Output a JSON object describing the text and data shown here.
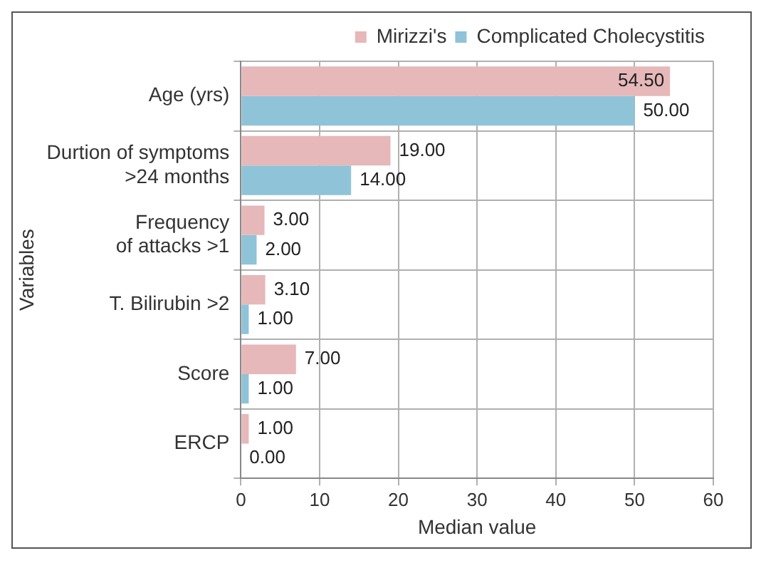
{
  "chart_data": {
    "type": "bar",
    "orientation": "horizontal",
    "xlabel": "Median value",
    "ylabel": "Variables",
    "categories": [
      "Age (yrs)",
      "Durtion of symptoms\n>24 months",
      "Frequency\nof attacks >1",
      "T. Bilirubin >2",
      "Score",
      "ERCP"
    ],
    "series": [
      {
        "name": "Mirizzi's",
        "color": "#e6b8b9",
        "values": [
          54.5,
          19,
          3,
          3.1,
          7,
          1
        ],
        "value_labels": [
          "54.50",
          "19.00",
          "3.00",
          "3.10",
          "7.00",
          "1.00"
        ]
      },
      {
        "name": "Complicated Cholecystitis",
        "color": "#8fc3d8",
        "values": [
          50,
          14,
          2,
          1,
          1,
          0
        ],
        "value_labels": [
          "50.00",
          "14.00",
          "2.00",
          "1.00",
          "1.00",
          "0.00"
        ]
      }
    ],
    "xlim": [
      0,
      60
    ],
    "xticks": [
      0,
      10,
      20,
      30,
      40,
      50,
      60
    ],
    "grid": true,
    "legend": "top right"
  }
}
